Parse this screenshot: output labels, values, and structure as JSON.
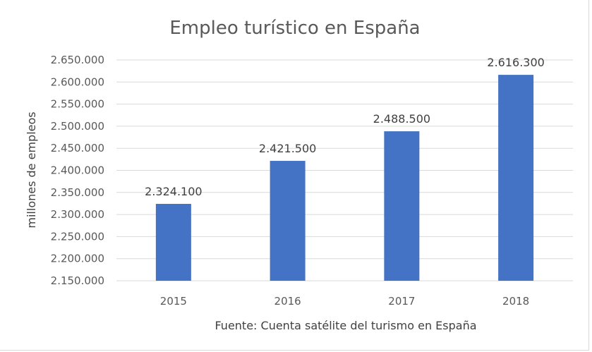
{
  "chart_data": {
    "type": "bar",
    "title": "Empleo turístico en España",
    "xlabel": "Fuente: Cuenta satélite del turismo en España",
    "ylabel": "millones de empleos",
    "categories": [
      "2015",
      "2016",
      "2017",
      "2018"
    ],
    "values": [
      2324100,
      2421500,
      2488500,
      2616300
    ],
    "data_labels": [
      "2.324.100",
      "2.421.500",
      "2.488.500",
      "2.616.300"
    ],
    "ylim": [
      2150000,
      2650000
    ],
    "yticks": [
      2150000,
      2200000,
      2250000,
      2300000,
      2350000,
      2400000,
      2450000,
      2500000,
      2550000,
      2600000,
      2650000
    ],
    "ytick_labels": [
      "2.150.000",
      "2.200.000",
      "2.250.000",
      "2.300.000",
      "2.350.000",
      "2.400.000",
      "2.450.000",
      "2.500.000",
      "2.550.000",
      "2.600.000",
      "2.650.000"
    ],
    "grid": true,
    "legend": "none",
    "colors": {
      "bar": "#4472C4",
      "grid": "#d9d9d9",
      "text": "#595959"
    }
  }
}
